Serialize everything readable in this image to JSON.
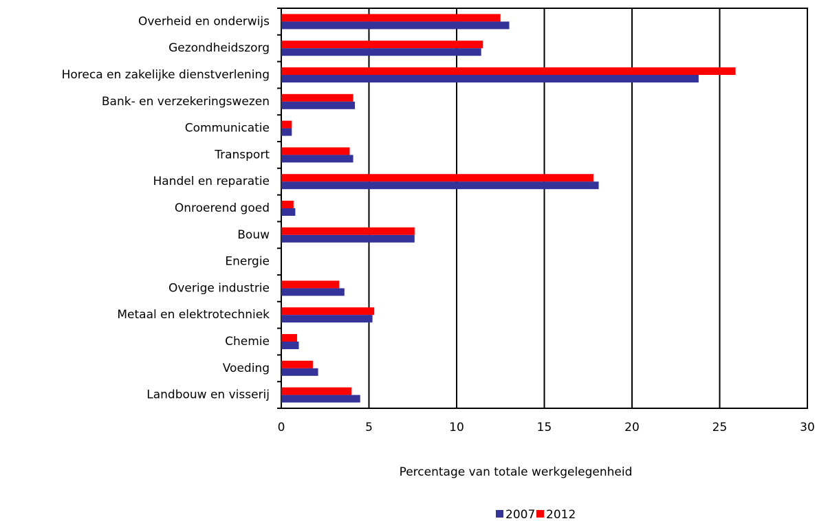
{
  "chart_data": {
    "type": "bar",
    "orientation": "horizontal",
    "x_label": "Percentage van totale werkgelegenheid",
    "categories": [
      "Overheid en onderwijs",
      "Gezondheidszorg",
      "Horeca en zakelijke dienstverlening",
      "Bank- en verzekeringswezen",
      "Communicatie",
      "Transport",
      "Handel en reparatie",
      "Onroerend goed",
      "Bouw",
      "Energie",
      "Overige industrie",
      "Metaal en elektrotechniek",
      "Chemie",
      "Voeding",
      "Landbouw en visserij"
    ],
    "series": [
      {
        "name": "2007",
        "color": "#333399",
        "values": [
          13.0,
          11.4,
          23.8,
          4.2,
          0.6,
          4.1,
          18.1,
          0.8,
          7.6,
          0,
          3.6,
          5.2,
          1.0,
          2.1,
          4.5
        ]
      },
      {
        "name": "2012",
        "color": "#ff0000",
        "values": [
          12.5,
          11.5,
          25.9,
          4.1,
          0.6,
          3.9,
          17.8,
          0.7,
          7.6,
          0,
          3.3,
          5.3,
          0.9,
          1.8,
          4.0
        ]
      }
    ],
    "xlim": [
      0,
      30
    ],
    "xticks": [
      0,
      5,
      10,
      15,
      20,
      25,
      30
    ],
    "grid": true,
    "legend": "bottom"
  }
}
